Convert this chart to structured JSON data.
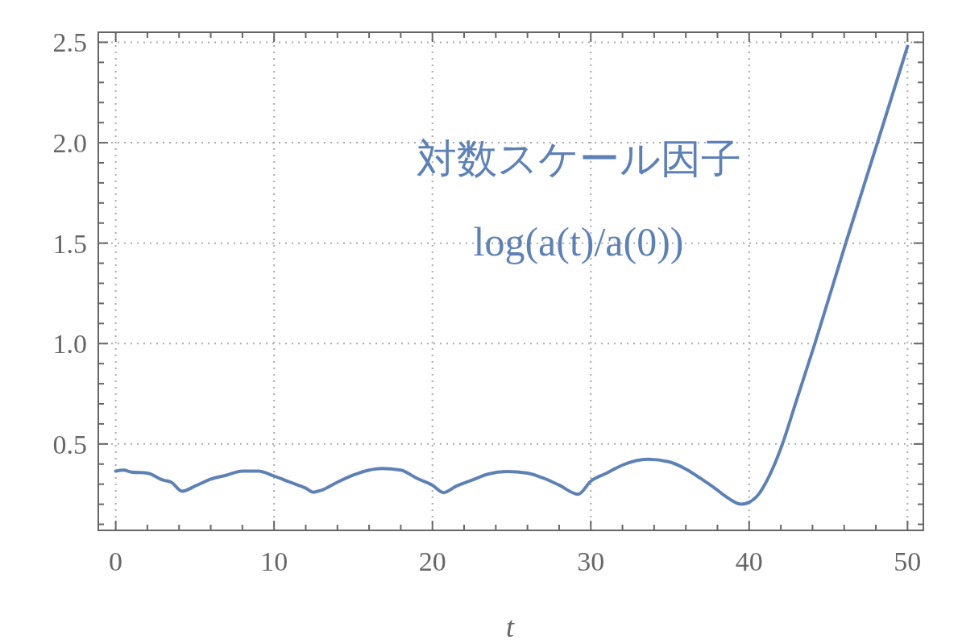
{
  "chart_data": {
    "type": "line",
    "xlabel": "t",
    "annotations": [
      "対数スケール因子",
      "log(a(t)/a(0))"
    ],
    "x": [
      0,
      0.5,
      1,
      2,
      3,
      3.5,
      4.2,
      5,
      6,
      7,
      8,
      9,
      10,
      11,
      12,
      12.5,
      13,
      14,
      15,
      16,
      16.8,
      18,
      19,
      20,
      20.7,
      21.5,
      22.5,
      23.5,
      24.7,
      26,
      27,
      28,
      29.2,
      30,
      31,
      32,
      33.6,
      35,
      36,
      37,
      38,
      38.5,
      39.5,
      40,
      40.6,
      41,
      41.5,
      42.1,
      43,
      44.15,
      46.1,
      48.1,
      50
    ],
    "series": [
      {
        "color": "#5e81b5",
        "values": [
          0.365,
          0.37,
          0.36,
          0.355,
          0.32,
          0.31,
          0.265,
          0.29,
          0.325,
          0.345,
          0.365,
          0.365,
          0.34,
          0.31,
          0.28,
          0.26,
          0.27,
          0.31,
          0.345,
          0.37,
          0.378,
          0.37,
          0.33,
          0.295,
          0.258,
          0.29,
          0.32,
          0.35,
          0.363,
          0.355,
          0.33,
          0.295,
          0.25,
          0.315,
          0.355,
          0.395,
          0.424,
          0.41,
          0.375,
          0.325,
          0.27,
          0.24,
          0.2,
          0.21,
          0.25,
          0.3,
          0.38,
          0.5,
          0.72,
          1.0,
          1.5,
          2.0,
          2.48
        ]
      }
    ],
    "xlim": [
      -1.1,
      51
    ],
    "ylim": [
      0.07,
      2.55
    ],
    "xticks": [
      0,
      {
        "value": 2,
        "label": null
      },
      {
        "value": 4,
        "label": null
      },
      {
        "value": 6,
        "label": null
      },
      {
        "value": 8,
        "label": null
      },
      10,
      {
        "value": 12,
        "label": null
      },
      {
        "value": 14,
        "label": null
      },
      {
        "value": 16,
        "label": null
      },
      {
        "value": 18,
        "label": null
      },
      20,
      {
        "value": 22,
        "label": null
      },
      {
        "value": 24,
        "label": null
      },
      {
        "value": 26,
        "label": null
      },
      {
        "value": 28,
        "label": null
      },
      30,
      {
        "value": 32,
        "label": null
      },
      {
        "value": 34,
        "label": null
      },
      {
        "value": 36,
        "label": null
      },
      {
        "value": 38,
        "label": null
      },
      40,
      {
        "value": 42,
        "label": null
      },
      {
        "value": 44,
        "label": null
      },
      {
        "value": 46,
        "label": null
      },
      {
        "value": 48,
        "label": null
      },
      50
    ],
    "yticks": [
      {
        "value": 0.1,
        "label": null
      },
      {
        "value": 0.2,
        "label": null
      },
      {
        "value": 0.3,
        "label": null
      },
      {
        "value": 0.4,
        "label": null
      },
      0.5,
      {
        "value": 0.6,
        "label": null
      },
      {
        "value": 0.7,
        "label": null
      },
      {
        "value": 0.8,
        "label": null
      },
      {
        "value": 0.9,
        "label": null
      },
      {
        "value": 1,
        "label": "1.0"
      },
      {
        "value": 1.1,
        "label": null
      },
      {
        "value": 1.2,
        "label": null
      },
      {
        "value": 1.3,
        "label": null
      },
      {
        "value": 1.4,
        "label": null
      },
      1.5,
      {
        "value": 1.6,
        "label": null
      },
      {
        "value": 1.7,
        "label": null
      },
      {
        "value": 1.8,
        "label": null
      },
      {
        "value": 1.9,
        "label": null
      },
      {
        "value": 2,
        "label": "2.0"
      },
      {
        "value": 2.1,
        "label": null
      },
      {
        "value": 2.2,
        "label": null
      },
      {
        "value": 2.3,
        "label": null
      },
      {
        "value": 2.4,
        "label": null
      },
      2.5
    ],
    "grid": true,
    "line_style": "solid",
    "marker": "none"
  }
}
